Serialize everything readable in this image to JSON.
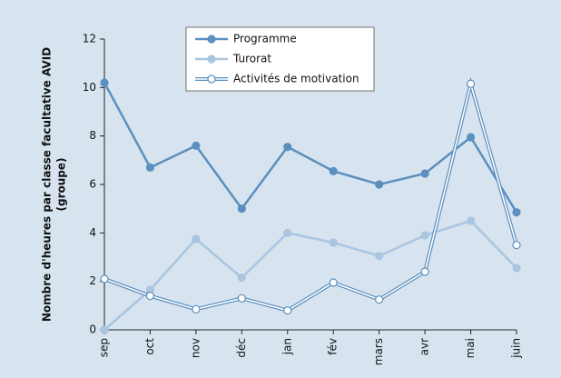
{
  "chart_data": {
    "type": "line",
    "y_label": [
      "Nombre d'heures par classe facultative AVID",
      "(groupe)"
    ],
    "categories": [
      "sep",
      "oct",
      "nov",
      "déc",
      "jan",
      "fév",
      "mars",
      "avr",
      "mai",
      "juin"
    ],
    "series": [
      {
        "name": "Programme",
        "color": "#5b8fbe",
        "values": [
          10.2,
          6.7,
          7.6,
          5.0,
          7.55,
          6.55,
          6.0,
          6.45,
          7.95,
          4.85
        ]
      },
      {
        "name": "Turorat",
        "color": "#a9c5e0",
        "values": [
          0,
          1.65,
          3.75,
          2.15,
          4.0,
          3.6,
          3.05,
          3.9,
          4.5,
          2.55
        ]
      },
      {
        "name": "Activités de motivation",
        "color": "#5b8fbe",
        "values": [
          2.1,
          1.4,
          0.85,
          1.3,
          0.8,
          1.95,
          1.25,
          2.4,
          10.15,
          3.5
        ]
      }
    ],
    "ylim": [
      0,
      12
    ],
    "yticks": [
      0,
      2,
      4,
      6,
      8,
      10,
      12
    ],
    "grid": false,
    "legend": "upper left"
  }
}
